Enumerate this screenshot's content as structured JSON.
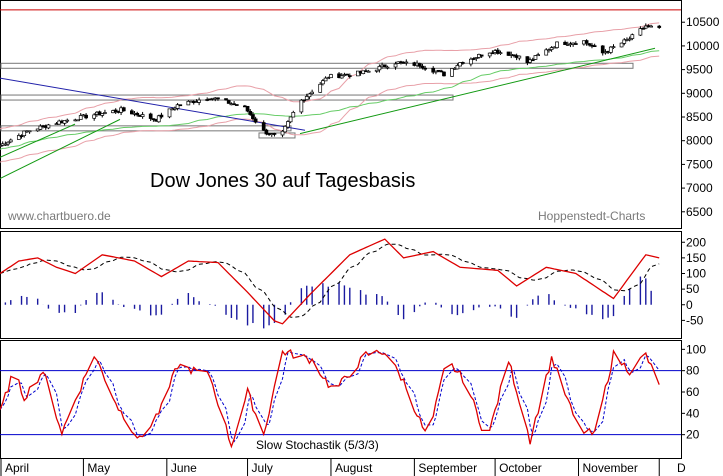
{
  "watermark_left": "www.chartbuero.de",
  "watermark_right": "Hoppenstedt-Charts",
  "title": "Dow Jones 30 auf Tagesbasis",
  "colors": {
    "price": "#000000",
    "ma_pink": "#e8a0a8",
    "ma_green": "#66cc66",
    "trend_green": "#119911",
    "trend_blue": "#2222aa",
    "resistance_red": "#cc0000",
    "macd_red": "#dd0000",
    "histogram": "#1a1aa0",
    "stoch_blue": "#0000cc",
    "grid": "#000000"
  },
  "months": [
    "April",
    "May",
    "June",
    "July",
    "August",
    "September",
    "October",
    "November",
    "D"
  ],
  "chart_data": [
    {
      "type": "candlestick",
      "title": "Dow Jones 30 auf Tagesbasis",
      "yticks": [
        "10500",
        "10000",
        "9500",
        "9000",
        "8500",
        "8000",
        "7500",
        "7000",
        "6500"
      ],
      "ylim": [
        6200,
        10800
      ],
      "x_range": [
        "2003-03-31",
        "2003-12-05"
      ],
      "resistance_level": 10760,
      "price_path": [
        [
          "2003-03-31",
          7900
        ],
        [
          "2003-04-10",
          8200
        ],
        [
          "2003-04-22",
          8400
        ],
        [
          "2003-05-05",
          8550
        ],
        [
          "2003-05-15",
          8650
        ],
        [
          "2003-05-28",
          8450
        ],
        [
          "2003-06-05",
          8750
        ],
        [
          "2003-06-17",
          8920
        ],
        [
          "2003-06-30",
          8700
        ],
        [
          "2003-07-07",
          8200
        ],
        [
          "2003-07-13",
          8050
        ],
        [
          "2003-07-20",
          8800
        ],
        [
          "2003-07-31",
          9350
        ],
        [
          "2003-08-08",
          9400
        ],
        [
          "2003-08-14",
          9450
        ],
        [
          "2003-08-25",
          9650
        ],
        [
          "2003-09-03",
          9600
        ],
        [
          "2003-09-12",
          9400
        ],
        [
          "2003-09-18",
          9650
        ],
        [
          "2003-09-30",
          9900
        ],
        [
          "2003-10-09",
          9800
        ],
        [
          "2003-10-13",
          9650
        ],
        [
          "2003-10-24",
          10050
        ],
        [
          "2003-11-03",
          10100
        ],
        [
          "2003-11-10",
          9850
        ],
        [
          "2003-11-20",
          10150
        ],
        [
          "2003-11-26",
          10420
        ],
        [
          "2003-12-01",
          10350
        ]
      ]
    },
    {
      "type": "line",
      "yticks": [
        "200",
        "150",
        "100",
        "50",
        "0",
        "-50"
      ],
      "ylim": [
        -100,
        220
      ],
      "series_path": [
        [
          "2003-03-31",
          100
        ],
        [
          "2003-04-07",
          140
        ],
        [
          "2003-04-14",
          150
        ],
        [
          "2003-04-21",
          120
        ],
        [
          "2003-04-28",
          100
        ],
        [
          "2003-05-08",
          160
        ],
        [
          "2003-05-20",
          140
        ],
        [
          "2003-05-30",
          90
        ],
        [
          "2003-06-09",
          140
        ],
        [
          "2003-06-20",
          135
        ],
        [
          "2003-07-01",
          40
        ],
        [
          "2003-07-13",
          -70
        ],
        [
          "2003-07-25",
          40
        ],
        [
          "2003-08-08",
          160
        ],
        [
          "2003-08-21",
          210
        ],
        [
          "2003-08-28",
          150
        ],
        [
          "2003-09-08",
          170
        ],
        [
          "2003-09-18",
          120
        ],
        [
          "2003-10-02",
          110
        ],
        [
          "2003-10-09",
          60
        ],
        [
          "2003-10-20",
          120
        ],
        [
          "2003-10-31",
          100
        ],
        [
          "2003-11-14",
          20
        ],
        [
          "2003-11-26",
          160
        ],
        [
          "2003-12-01",
          150
        ]
      ]
    },
    {
      "type": "line",
      "title": "Slow Stochastik (5/3/3)",
      "yticks": [
        "100",
        "80",
        "60",
        "40",
        "20"
      ],
      "ylim": [
        0,
        105
      ],
      "reference_lines": [
        80,
        20
      ],
      "series_path": [
        [
          "2003-03-31",
          40
        ],
        [
          "2003-04-05",
          80
        ],
        [
          "2003-04-09",
          55
        ],
        [
          "2003-04-16",
          80
        ],
        [
          "2003-04-23",
          22
        ],
        [
          "2003-05-05",
          95
        ],
        [
          "2003-05-14",
          45
        ],
        [
          "2003-05-22",
          15
        ],
        [
          "2003-05-30",
          45
        ],
        [
          "2003-06-05",
          85
        ],
        [
          "2003-06-17",
          75
        ],
        [
          "2003-06-25",
          10
        ],
        [
          "2003-07-01",
          60
        ],
        [
          "2003-07-07",
          20
        ],
        [
          "2003-07-14",
          98
        ],
        [
          "2003-07-25",
          90
        ],
        [
          "2003-08-02",
          60
        ],
        [
          "2003-08-14",
          95
        ],
        [
          "2003-08-21",
          98
        ],
        [
          "2003-08-28",
          70
        ],
        [
          "2003-09-06",
          15
        ],
        [
          "2003-09-13",
          90
        ],
        [
          "2003-09-20",
          70
        ],
        [
          "2003-09-28",
          14
        ],
        [
          "2003-10-06",
          90
        ],
        [
          "2003-10-14",
          15
        ],
        [
          "2003-10-22",
          92
        ],
        [
          "2003-11-01",
          25
        ],
        [
          "2003-11-07",
          20
        ],
        [
          "2003-11-14",
          95
        ],
        [
          "2003-11-20",
          80
        ],
        [
          "2003-11-26",
          95
        ],
        [
          "2003-12-01",
          65
        ]
      ]
    }
  ]
}
